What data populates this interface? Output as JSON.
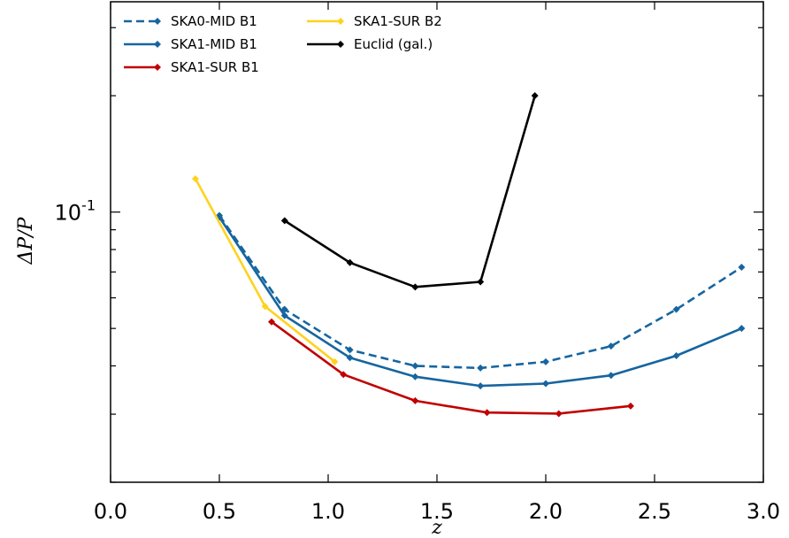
{
  "chart_data": {
    "type": "line",
    "title": "",
    "xlabel": "z",
    "ylabel": "ΔP/P",
    "xlim": [
      0.0,
      3.0
    ],
    "ylim": [
      0.02,
      0.35
    ],
    "yscale": "log",
    "grid": false,
    "legend_position": "top-left",
    "x_ticks": [
      "0.0",
      "0.5",
      "1.0",
      "1.5",
      "2.0",
      "2.5",
      "3.0"
    ],
    "y_tick_label": {
      "base": "10",
      "exponent": "-1"
    },
    "series": [
      {
        "name": "SKA0-MID B1",
        "color": "#1665a0",
        "dash": true,
        "x": [
          0.5,
          0.8,
          1.1,
          1.4,
          1.7,
          2.0,
          2.3,
          2.6,
          2.9
        ],
        "y": [
          0.098,
          0.056,
          0.044,
          0.04,
          0.0395,
          0.041,
          0.045,
          0.056,
          0.072
        ]
      },
      {
        "name": "SKA1-MID B1",
        "color": "#1665a0",
        "dash": false,
        "x": [
          0.5,
          0.8,
          1.1,
          1.4,
          1.7,
          2.0,
          2.3,
          2.6,
          2.9
        ],
        "y": [
          0.097,
          0.054,
          0.042,
          0.0375,
          0.0355,
          0.036,
          0.0378,
          0.0425,
          0.05
        ]
      },
      {
        "name": "SKA1-SUR B1",
        "color": "#c00000",
        "dash": false,
        "x": [
          0.74,
          1.07,
          1.4,
          1.73,
          2.06,
          2.39
        ],
        "y": [
          0.052,
          0.038,
          0.0325,
          0.0303,
          0.0301,
          0.0315
        ]
      },
      {
        "name": "SKA1-SUR B2",
        "color": "#ffd21e",
        "dash": false,
        "x": [
          0.39,
          0.71,
          1.03
        ],
        "y": [
          0.122,
          0.057,
          0.041
        ]
      },
      {
        "name": "Euclid (gal.)",
        "color": "#000000",
        "dash": false,
        "x": [
          0.8,
          1.1,
          1.4,
          1.7,
          1.95
        ],
        "y": [
          0.095,
          0.074,
          0.064,
          0.066,
          0.2
        ]
      }
    ]
  }
}
